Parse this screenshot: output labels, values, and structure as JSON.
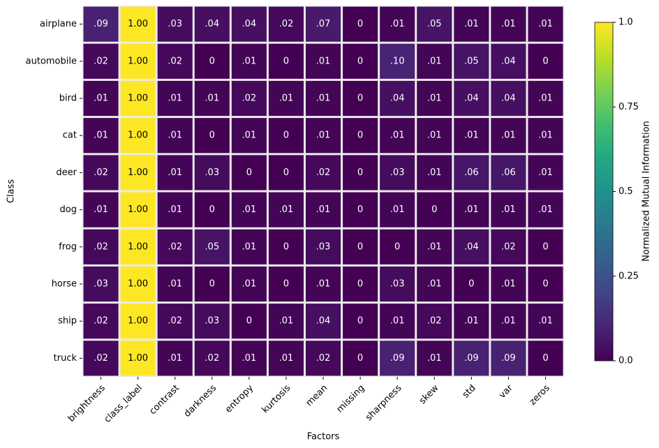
{
  "chart_data": {
    "type": "heatmap",
    "x_label": "Factors",
    "y_label": "Class",
    "colorbar_label": "Normalized Mutual Information",
    "colormap": "viridis",
    "clim": [
      0,
      1
    ],
    "cticks": [
      {
        "value": 0,
        "label": "0.0"
      },
      0.25,
      0.5,
      0.75,
      {
        "value": 1,
        "label": "1.0"
      }
    ],
    "x_categories": [
      "brightness",
      "class_label",
      "contrast",
      "darkness",
      "entropy",
      "kurtosis",
      "mean",
      "missing",
      "sharpness",
      "skew",
      "std",
      "var",
      "zeros"
    ],
    "y_categories": [
      "airplane",
      "automobile",
      "bird",
      "cat",
      "deer",
      "dog",
      "frog",
      "horse",
      "ship",
      "truck"
    ],
    "values": [
      [
        0.09,
        1,
        0.03,
        0.04,
        0.04,
        0.02,
        0.07,
        0,
        0.01,
        0.05,
        0.01,
        0.01,
        0.01
      ],
      [
        0.02,
        1,
        0.02,
        0,
        0.01,
        0,
        0.01,
        0,
        0.1,
        0.01,
        0.05,
        0.04,
        0
      ],
      [
        0.01,
        1,
        0.01,
        0.01,
        0.02,
        0.01,
        0.01,
        0,
        0.04,
        0.01,
        0.04,
        0.04,
        0.01
      ],
      [
        0.01,
        1,
        0.01,
        0,
        0.01,
        0,
        0.01,
        0,
        0.01,
        0.01,
        0.01,
        0.01,
        0.01
      ],
      [
        0.02,
        1,
        0.01,
        0.03,
        0,
        0,
        0.02,
        0,
        0.03,
        0.01,
        0.06,
        0.06,
        0.01
      ],
      [
        0.01,
        1,
        0.01,
        0,
        0.01,
        0.01,
        0.01,
        0,
        0.01,
        0,
        0.01,
        0.01,
        0.01
      ],
      [
        0.02,
        1,
        0.02,
        0.05,
        0.01,
        0,
        0.03,
        0,
        0,
        0.01,
        0.04,
        0.02,
        0
      ],
      [
        0.03,
        1,
        0.01,
        0,
        0.01,
        0,
        0.01,
        0,
        0.03,
        0.01,
        0,
        0.01,
        0
      ],
      [
        0.02,
        1,
        0.02,
        0.03,
        0,
        0.01,
        0.04,
        0,
        0.01,
        0.02,
        0.01,
        0.01,
        0.01
      ],
      [
        0.02,
        1,
        0.01,
        0.02,
        0.01,
        0.01,
        0.02,
        0,
        0.09,
        0.01,
        0.09,
        0.09,
        0
      ]
    ],
    "value_labels": [
      [
        ".09",
        "1.00",
        ".03",
        ".04",
        ".04",
        ".02",
        ".07",
        "0",
        ".01",
        ".05",
        ".01",
        ".01",
        ".01"
      ],
      [
        ".02",
        "1.00",
        ".02",
        "0",
        ".01",
        "0",
        ".01",
        "0",
        ".10",
        ".01",
        ".05",
        ".04",
        "0"
      ],
      [
        ".01",
        "1.00",
        ".01",
        ".01",
        ".02",
        ".01",
        ".01",
        "0",
        ".04",
        ".01",
        ".04",
        ".04",
        ".01"
      ],
      [
        ".01",
        "1.00",
        ".01",
        "0",
        ".01",
        "0",
        ".01",
        "0",
        ".01",
        ".01",
        ".01",
        ".01",
        ".01"
      ],
      [
        ".02",
        "1.00",
        ".01",
        ".03",
        "0",
        "0",
        ".02",
        "0",
        ".03",
        ".01",
        ".06",
        ".06",
        ".01"
      ],
      [
        ".01",
        "1.00",
        ".01",
        "0",
        ".01",
        ".01",
        ".01",
        "0",
        ".01",
        "0",
        ".01",
        ".01",
        ".01"
      ],
      [
        ".02",
        "1.00",
        ".02",
        ".05",
        ".01",
        "0",
        ".03",
        "0",
        "0",
        ".01",
        ".04",
        ".02",
        "0"
      ],
      [
        ".03",
        "1.00",
        ".01",
        "0",
        ".01",
        "0",
        ".01",
        "0",
        ".03",
        ".01",
        "0",
        ".01",
        "0"
      ],
      [
        ".02",
        "1.00",
        ".02",
        ".03",
        "0",
        ".01",
        ".04",
        "0",
        ".01",
        ".02",
        ".01",
        ".01",
        ".01"
      ],
      [
        ".02",
        "1.00",
        ".01",
        ".02",
        ".01",
        ".01",
        ".02",
        "0",
        ".09",
        ".01",
        ".09",
        ".09",
        "0"
      ]
    ]
  }
}
